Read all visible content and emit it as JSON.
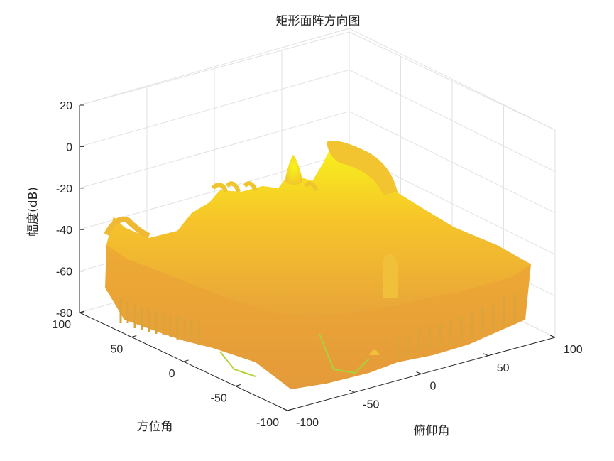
{
  "chart_data": {
    "type": "surface",
    "title": "矩形面阵方向图",
    "xlabel": "方位角",
    "ylabel": "俯仰角",
    "zlabel": "幅度(dB)",
    "x_range": [
      -100,
      100
    ],
    "y_range": [
      -100,
      100
    ],
    "z_range": [
      -80,
      20
    ],
    "x_ticks": [
      100,
      50,
      0,
      -50,
      -100
    ],
    "y_ticks": [
      -100,
      -50,
      0,
      50,
      100
    ],
    "z_ticks": [
      20,
      0,
      -20,
      -40,
      -60,
      -80
    ],
    "grid": true,
    "colormap": "parula (upper range: orange to yellow)",
    "colors": {
      "low": "#e8a43a",
      "mid": "#f6c42a",
      "high": "#f7f51a",
      "edge_green": "#9fd13a"
    },
    "features": {
      "main_lobe": {
        "azimuth": 0,
        "elevation": 0,
        "peak_db": 0
      },
      "grating_lobes_peak_db": 0,
      "sidelobe_floor_db": -50
    }
  }
}
